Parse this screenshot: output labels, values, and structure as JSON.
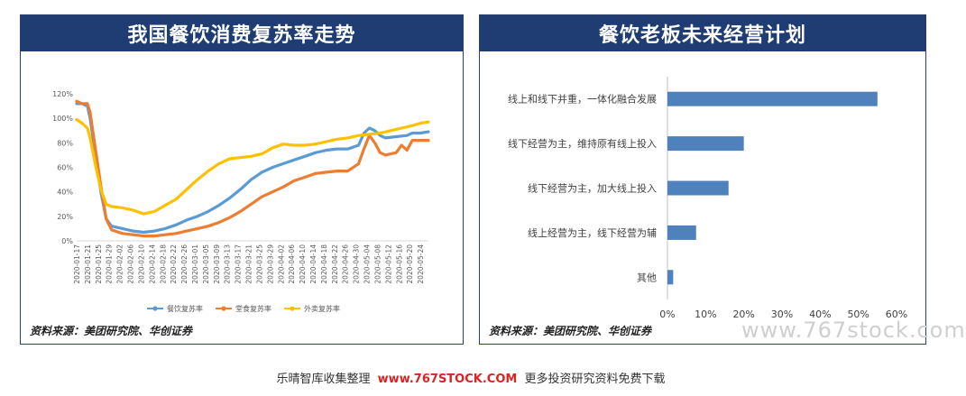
{
  "left_panel": {
    "title": "我国餐饮消费复苏率走势",
    "source": "资料来源：美团研究院、华创证券"
  },
  "right_panel": {
    "title": "餐饮老板未来经营计划",
    "source": "资料来源：美团研究院、华创证券"
  },
  "watermark": "www.767stock.com",
  "footer": {
    "prefix": "乐晴智库收集整理",
    "url": "www.767STOCK.COM",
    "suffix": "更多投资研究资料免费下载"
  },
  "chart_data": [
    {
      "type": "line",
      "title": "我国餐饮消费复苏率走势",
      "yticks": [
        "0%",
        "20%",
        "40%",
        "60%",
        "80%",
        "100%",
        "120%"
      ],
      "ylim": [
        0,
        120
      ],
      "x_start": "2020-01-17",
      "x_end": "2020-05-27",
      "xticks": [
        "2020-01-17",
        "2020-01-21",
        "2020-01-25",
        "2020-01-29",
        "2020-02-02",
        "2020-02-06",
        "2020-02-10",
        "2020-02-14",
        "2020-02-18",
        "2020-02-22",
        "2020-02-26",
        "2020-03-01",
        "2020-03-05",
        "2020-03-09",
        "2020-03-13",
        "2020-03-17",
        "2020-03-21",
        "2020-03-25",
        "2020-03-29",
        "2020-04-02",
        "2020-04-06",
        "2020-04-10",
        "2020-04-14",
        "2020-04-18",
        "2020-04-22",
        "2020-04-26",
        "2020-04-30",
        "2020-05-04",
        "2020-05-08",
        "2020-05-12",
        "2020-05-16",
        "2020-05-20",
        "2020-05-24"
      ],
      "legend_position": "bottom",
      "series": [
        {
          "name": "餐饮复苏率",
          "color": "#5b9bd5",
          "points": [
            [
              "2020-01-17",
              112
            ],
            [
              "2020-01-19",
              112
            ],
            [
              "2020-01-21",
              110
            ],
            [
              "2020-01-22",
              100
            ],
            [
              "2020-01-24",
              70
            ],
            [
              "2020-01-26",
              40
            ],
            [
              "2020-01-28",
              18
            ],
            [
              "2020-01-30",
              12
            ],
            [
              "2020-02-03",
              10
            ],
            [
              "2020-02-07",
              8
            ],
            [
              "2020-02-11",
              7
            ],
            [
              "2020-02-15",
              8
            ],
            [
              "2020-02-19",
              10
            ],
            [
              "2020-02-23",
              13
            ],
            [
              "2020-02-27",
              17
            ],
            [
              "2020-03-02",
              20
            ],
            [
              "2020-03-06",
              24
            ],
            [
              "2020-03-10",
              29
            ],
            [
              "2020-03-14",
              35
            ],
            [
              "2020-03-18",
              42
            ],
            [
              "2020-03-22",
              50
            ],
            [
              "2020-03-26",
              56
            ],
            [
              "2020-03-30",
              60
            ],
            [
              "2020-04-03",
              63
            ],
            [
              "2020-04-07",
              66
            ],
            [
              "2020-04-11",
              69
            ],
            [
              "2020-04-15",
              72
            ],
            [
              "2020-04-19",
              74
            ],
            [
              "2020-04-23",
              75
            ],
            [
              "2020-04-27",
              75
            ],
            [
              "2020-05-01",
              78
            ],
            [
              "2020-05-03",
              88
            ],
            [
              "2020-05-05",
              92
            ],
            [
              "2020-05-07",
              90
            ],
            [
              "2020-05-09",
              86
            ],
            [
              "2020-05-11",
              84
            ],
            [
              "2020-05-15",
              85
            ],
            [
              "2020-05-19",
              86
            ],
            [
              "2020-05-21",
              88
            ],
            [
              "2020-05-24",
              88
            ],
            [
              "2020-05-27",
              89
            ]
          ]
        },
        {
          "name": "堂食复苏率",
          "color": "#ed7d31",
          "points": [
            [
              "2020-01-17",
              114
            ],
            [
              "2020-01-19",
              112
            ],
            [
              "2020-01-21",
              112
            ],
            [
              "2020-01-22",
              105
            ],
            [
              "2020-01-24",
              75
            ],
            [
              "2020-01-26",
              45
            ],
            [
              "2020-01-28",
              18
            ],
            [
              "2020-01-30",
              9
            ],
            [
              "2020-02-03",
              6
            ],
            [
              "2020-02-07",
              5
            ],
            [
              "2020-02-11",
              4
            ],
            [
              "2020-02-15",
              4
            ],
            [
              "2020-02-19",
              5
            ],
            [
              "2020-02-23",
              6
            ],
            [
              "2020-02-27",
              8
            ],
            [
              "2020-03-02",
              10
            ],
            [
              "2020-03-06",
              12
            ],
            [
              "2020-03-10",
              15
            ],
            [
              "2020-03-14",
              19
            ],
            [
              "2020-03-18",
              24
            ],
            [
              "2020-03-22",
              30
            ],
            [
              "2020-03-26",
              36
            ],
            [
              "2020-03-30",
              40
            ],
            [
              "2020-04-03",
              44
            ],
            [
              "2020-04-07",
              49
            ],
            [
              "2020-04-11",
              52
            ],
            [
              "2020-04-15",
              55
            ],
            [
              "2020-04-19",
              56
            ],
            [
              "2020-04-23",
              57
            ],
            [
              "2020-04-27",
              57
            ],
            [
              "2020-05-01",
              63
            ],
            [
              "2020-05-03",
              75
            ],
            [
              "2020-05-05",
              86
            ],
            [
              "2020-05-07",
              80
            ],
            [
              "2020-05-09",
              72
            ],
            [
              "2020-05-11",
              70
            ],
            [
              "2020-05-15",
              72
            ],
            [
              "2020-05-17",
              78
            ],
            [
              "2020-05-19",
              74
            ],
            [
              "2020-05-21",
              82
            ],
            [
              "2020-05-24",
              82
            ],
            [
              "2020-05-27",
              82
            ]
          ]
        },
        {
          "name": "外卖复苏率",
          "color": "#ffc000",
          "points": [
            [
              "2020-01-17",
              99
            ],
            [
              "2020-01-19",
              96
            ],
            [
              "2020-01-21",
              92
            ],
            [
              "2020-01-22",
              84
            ],
            [
              "2020-01-24",
              62
            ],
            [
              "2020-01-26",
              42
            ],
            [
              "2020-01-28",
              30
            ],
            [
              "2020-01-30",
              28
            ],
            [
              "2020-02-03",
              27
            ],
            [
              "2020-02-07",
              25
            ],
            [
              "2020-02-11",
              22
            ],
            [
              "2020-02-15",
              24
            ],
            [
              "2020-02-19",
              29
            ],
            [
              "2020-02-23",
              34
            ],
            [
              "2020-02-27",
              42
            ],
            [
              "2020-03-02",
              50
            ],
            [
              "2020-03-06",
              57
            ],
            [
              "2020-03-10",
              63
            ],
            [
              "2020-03-14",
              67
            ],
            [
              "2020-03-18",
              68
            ],
            [
              "2020-03-22",
              69
            ],
            [
              "2020-03-26",
              71
            ],
            [
              "2020-03-30",
              76
            ],
            [
              "2020-04-03",
              79
            ],
            [
              "2020-04-07",
              78
            ],
            [
              "2020-04-11",
              78
            ],
            [
              "2020-04-15",
              79
            ],
            [
              "2020-04-19",
              81
            ],
            [
              "2020-04-23",
              83
            ],
            [
              "2020-04-27",
              84
            ],
            [
              "2020-05-01",
              86
            ],
            [
              "2020-05-05",
              87
            ],
            [
              "2020-05-09",
              88
            ],
            [
              "2020-05-13",
              90
            ],
            [
              "2020-05-17",
              92
            ],
            [
              "2020-05-21",
              94
            ],
            [
              "2020-05-24",
              96
            ],
            [
              "2020-05-27",
              97
            ]
          ]
        }
      ]
    },
    {
      "type": "bar",
      "orientation": "horizontal",
      "title": "餐饮老板未来经营计划",
      "categories": [
        "线上和线下并重，一体化融合发展",
        "线下经营为主，维持原有线上投入",
        "线下经营为主，加大线上投入",
        "线上经营为主，线下经营为辅",
        "其他"
      ],
      "values": [
        55,
        20,
        16,
        7.5,
        1.5
      ],
      "xticks": [
        "0%",
        "10%",
        "20%",
        "30%",
        "40%",
        "50%",
        "60%"
      ],
      "xlim": [
        0,
        60
      ],
      "color": "#4f81bd"
    }
  ]
}
